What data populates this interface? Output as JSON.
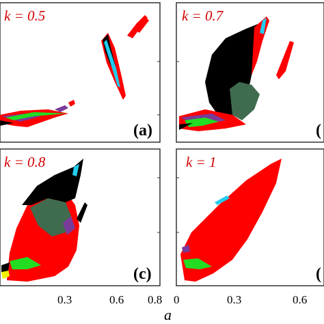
{
  "figure": {
    "panels": [
      {
        "k_label": "k = 0.5",
        "tag": "(a)"
      },
      {
        "k_label": "k = 0.7",
        "tag": "("
      },
      {
        "k_label": "k = 0.8",
        "tag": "(c)"
      },
      {
        "k_label": "k = 1",
        "tag": "("
      }
    ],
    "x_ticks_left": [
      "0.3",
      "0.6",
      "0.8"
    ],
    "x_ticks_right": [
      "0",
      "0.3",
      "0.6"
    ],
    "x_axis_title": "a",
    "colors": {
      "frame": "#333333",
      "label_red": "#d40000",
      "red": "#ff0000",
      "black": "#000000",
      "green_dark": "#3f6b4f",
      "green": "#22dd22",
      "cyan": "#22ccee",
      "purple": "#7a3a9a",
      "yellow": "#f0f000"
    }
  }
}
